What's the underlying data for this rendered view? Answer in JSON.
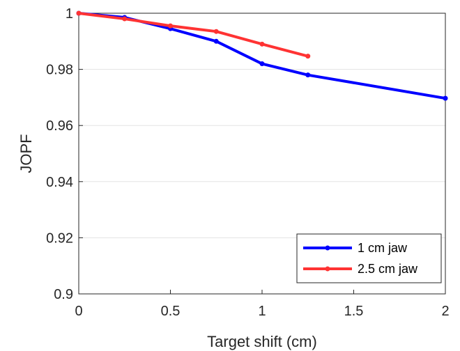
{
  "chart_data": {
    "type": "line",
    "xlabel": "Target shift (cm)",
    "ylabel": "JOPF",
    "xlim": [
      0,
      2
    ],
    "ylim": [
      0.9,
      1.0
    ],
    "xticks": [
      0,
      0.5,
      1,
      1.5,
      2
    ],
    "xtick_labels": [
      "0",
      "0.5",
      "1",
      "1.5",
      "2"
    ],
    "yticks": [
      0.9,
      0.92,
      0.94,
      0.96,
      0.98,
      1.0
    ],
    "ytick_labels": [
      "0.9",
      "0.92",
      "0.94",
      "0.96",
      "0.98",
      "1"
    ],
    "grid": "horizontal",
    "legend_position": "bottom-right",
    "series": [
      {
        "name": "1 cm jaw",
        "color": "#0000ff",
        "x": [
          0,
          0.25,
          0.5,
          0.75,
          1.0,
          1.25,
          2.0
        ],
        "y": [
          1.0,
          0.9985,
          0.9945,
          0.99,
          0.982,
          0.978,
          0.9697
        ]
      },
      {
        "name": "2.5 cm jaw",
        "color": "#ff3333",
        "x": [
          0,
          0.25,
          0.5,
          0.75,
          1.0,
          1.25
        ],
        "y": [
          1.0,
          0.998,
          0.9955,
          0.9935,
          0.989,
          0.9847
        ]
      }
    ]
  }
}
